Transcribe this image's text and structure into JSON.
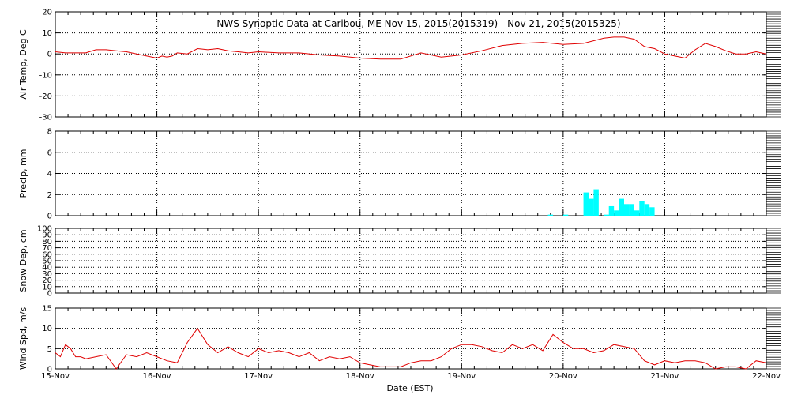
{
  "title": "NWS Synoptic Data at Caribou, ME    Nov 15, 2015(2015319) - Nov 21, 2015(2015325)",
  "xlabel": "Date (EST)",
  "colors": {
    "line": "#e00000",
    "precip": "#00ffff",
    "grid": "#000000"
  },
  "chart_data": [
    {
      "type": "line",
      "ylabel": "Air Temp, Deg C",
      "ylim": [
        -30,
        20
      ],
      "yticks": [
        -30,
        -20,
        -10,
        0,
        10,
        20
      ],
      "xlim": [
        0,
        7
      ],
      "grid": true,
      "series": [
        {
          "x": [
            0,
            0.1,
            0.2,
            0.3,
            0.4,
            0.5,
            0.6,
            0.7,
            0.8,
            0.9,
            1.0,
            1.05,
            1.1,
            1.15,
            1.2,
            1.3,
            1.4,
            1.5,
            1.6,
            1.7,
            1.8,
            1.9,
            2.0,
            2.2,
            2.4,
            2.6,
            2.8,
            3.0,
            3.2,
            3.4,
            3.6,
            3.8,
            4.0,
            4.2,
            4.4,
            4.6,
            4.8,
            5.0,
            5.2,
            5.4,
            5.5,
            5.6,
            5.7,
            5.8,
            5.9,
            6.0,
            6.1,
            6.2,
            6.3,
            6.4,
            6.5,
            6.6,
            6.7,
            6.8,
            6.9,
            7.0
          ],
          "values": [
            1,
            0.5,
            0.5,
            0.5,
            2,
            2,
            1.5,
            1,
            0,
            -1,
            -2,
            -1,
            -1.5,
            -1,
            0.5,
            0,
            2.5,
            2,
            2.5,
            1.5,
            1,
            0.5,
            1,
            0.5,
            0.5,
            -0.5,
            -1,
            -2,
            -2.5,
            -2.5,
            0.5,
            -1.5,
            -0.5,
            1.5,
            4,
            5,
            5.5,
            4.5,
            5,
            7.5,
            8,
            8,
            7,
            3.5,
            2.5,
            0,
            -1,
            -2,
            2,
            5,
            3.5,
            1.5,
            0,
            0,
            1,
            0
          ]
        }
      ]
    },
    {
      "type": "bar",
      "ylabel": "Precip, mm",
      "ylim": [
        0,
        8
      ],
      "yticks": [
        0,
        2,
        4,
        6,
        8
      ],
      "xlim": [
        0,
        7
      ],
      "grid": true,
      "x": [
        4.85,
        5.0,
        5.2,
        5.25,
        5.3,
        5.4,
        5.45,
        5.5,
        5.55,
        5.6,
        5.65,
        5.7,
        5.75,
        5.8,
        5.85
      ],
      "values": [
        0.1,
        0.1,
        2.2,
        1.6,
        2.5,
        0.1,
        0.9,
        0.5,
        1.6,
        1.1,
        1.1,
        0.5,
        1.4,
        1.1,
        0.8
      ]
    },
    {
      "type": "line",
      "ylabel": "Snow Dep, cm",
      "ylim": [
        0,
        100
      ],
      "yticks": [
        0,
        10,
        20,
        30,
        40,
        50,
        60,
        70,
        80,
        90,
        100
      ],
      "xlim": [
        0,
        7
      ],
      "grid": true,
      "series": []
    },
    {
      "type": "line",
      "ylabel": "Wind Spd, m/s",
      "ylim": [
        0,
        15
      ],
      "yticks": [
        0,
        5,
        10,
        15
      ],
      "xlim": [
        0,
        7
      ],
      "xticks": [
        "15-Nov",
        "16-Nov",
        "17-Nov",
        "18-Nov",
        "19-Nov",
        "20-Nov",
        "21-Nov",
        "22-Nov"
      ],
      "grid": true,
      "series": [
        {
          "x": [
            0,
            0.05,
            0.1,
            0.15,
            0.2,
            0.25,
            0.3,
            0.4,
            0.5,
            0.6,
            0.7,
            0.8,
            0.9,
            1.0,
            1.1,
            1.2,
            1.3,
            1.4,
            1.5,
            1.6,
            1.7,
            1.8,
            1.9,
            2.0,
            2.1,
            2.2,
            2.3,
            2.4,
            2.5,
            2.6,
            2.7,
            2.8,
            2.9,
            3.0,
            3.1,
            3.2,
            3.3,
            3.4,
            3.5,
            3.6,
            3.7,
            3.8,
            3.9,
            4.0,
            4.1,
            4.2,
            4.3,
            4.4,
            4.5,
            4.6,
            4.7,
            4.8,
            4.9,
            5.0,
            5.1,
            5.2,
            5.3,
            5.4,
            5.5,
            5.6,
            5.7,
            5.8,
            5.9,
            6.0,
            6.1,
            6.2,
            6.3,
            6.4,
            6.5,
            6.6,
            6.7,
            6.8,
            6.9,
            7.0
          ],
          "values": [
            4,
            3,
            6,
            5,
            3,
            3,
            2.5,
            3,
            3.5,
            0,
            3.5,
            3,
            4,
            3,
            2,
            1.5,
            6.5,
            10,
            6,
            4,
            5.5,
            4,
            3,
            5,
            4,
            4.5,
            4,
            3,
            4,
            2,
            3,
            2.5,
            3,
            1.5,
            1,
            0.5,
            0.5,
            0.5,
            1.5,
            2,
            2,
            3,
            5,
            6,
            6,
            5.5,
            4.5,
            4,
            6,
            5,
            6,
            4.5,
            8.5,
            6.5,
            5,
            5,
            4,
            4.5,
            6,
            5.5,
            5,
            2,
            1,
            2,
            1.5,
            2,
            2,
            1.5,
            0,
            0.5,
            0.5,
            0,
            2,
            1.5
          ]
        }
      ]
    }
  ]
}
